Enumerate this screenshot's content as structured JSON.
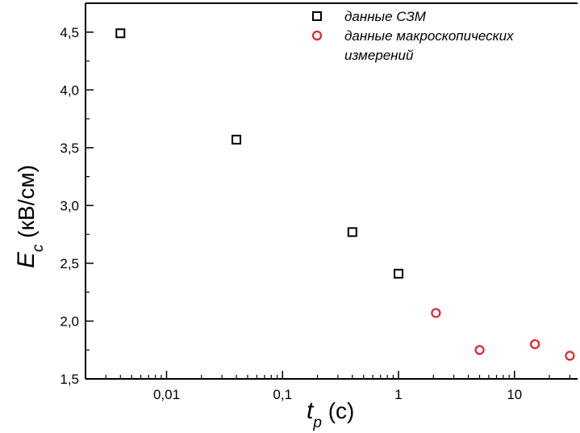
{
  "chart_data": {
    "type": "scatter",
    "x_scale": "log",
    "xlim": [
      0.002,
      35
    ],
    "ylim": [
      1.5,
      4.75
    ],
    "x_ticks": [
      {
        "value": 0.01,
        "label": "0,01"
      },
      {
        "value": 0.1,
        "label": "0,1"
      },
      {
        "value": 1,
        "label": "1"
      },
      {
        "value": 10,
        "label": "10"
      }
    ],
    "y_ticks": [
      {
        "value": 1.5,
        "label": "1,5"
      },
      {
        "value": 2.0,
        "label": "2,0"
      },
      {
        "value": 2.5,
        "label": "2,5"
      },
      {
        "value": 3.0,
        "label": "3,0"
      },
      {
        "value": 3.5,
        "label": "3,5"
      },
      {
        "value": 4.0,
        "label": "4,0"
      },
      {
        "value": 4.5,
        "label": "4,5"
      }
    ],
    "xlabel": {
      "symbol": "t",
      "subscript": "p",
      "unit": " (с)"
    },
    "ylabel": {
      "symbol": "E",
      "subscript": "c",
      "unit": " (кВ/см)"
    },
    "grid": false,
    "legend_position": "top-right",
    "series": [
      {
        "name_lines": [
          "данные СЗМ"
        ],
        "marker": "open-square",
        "color": "#000000",
        "points": [
          {
            "x": 0.004,
            "y": 4.49
          },
          {
            "x": 0.04,
            "y": 3.57
          },
          {
            "x": 0.4,
            "y": 2.77
          },
          {
            "x": 1.0,
            "y": 2.41
          }
        ]
      },
      {
        "name_lines": [
          "данные макроскопических",
          "измерений"
        ],
        "marker": "open-circle",
        "color": "#e8202a",
        "points": [
          {
            "x": 2.1,
            "y": 2.07
          },
          {
            "x": 5.0,
            "y": 1.75
          },
          {
            "x": 15.0,
            "y": 1.8
          },
          {
            "x": 30.0,
            "y": 1.7
          }
        ]
      }
    ]
  }
}
